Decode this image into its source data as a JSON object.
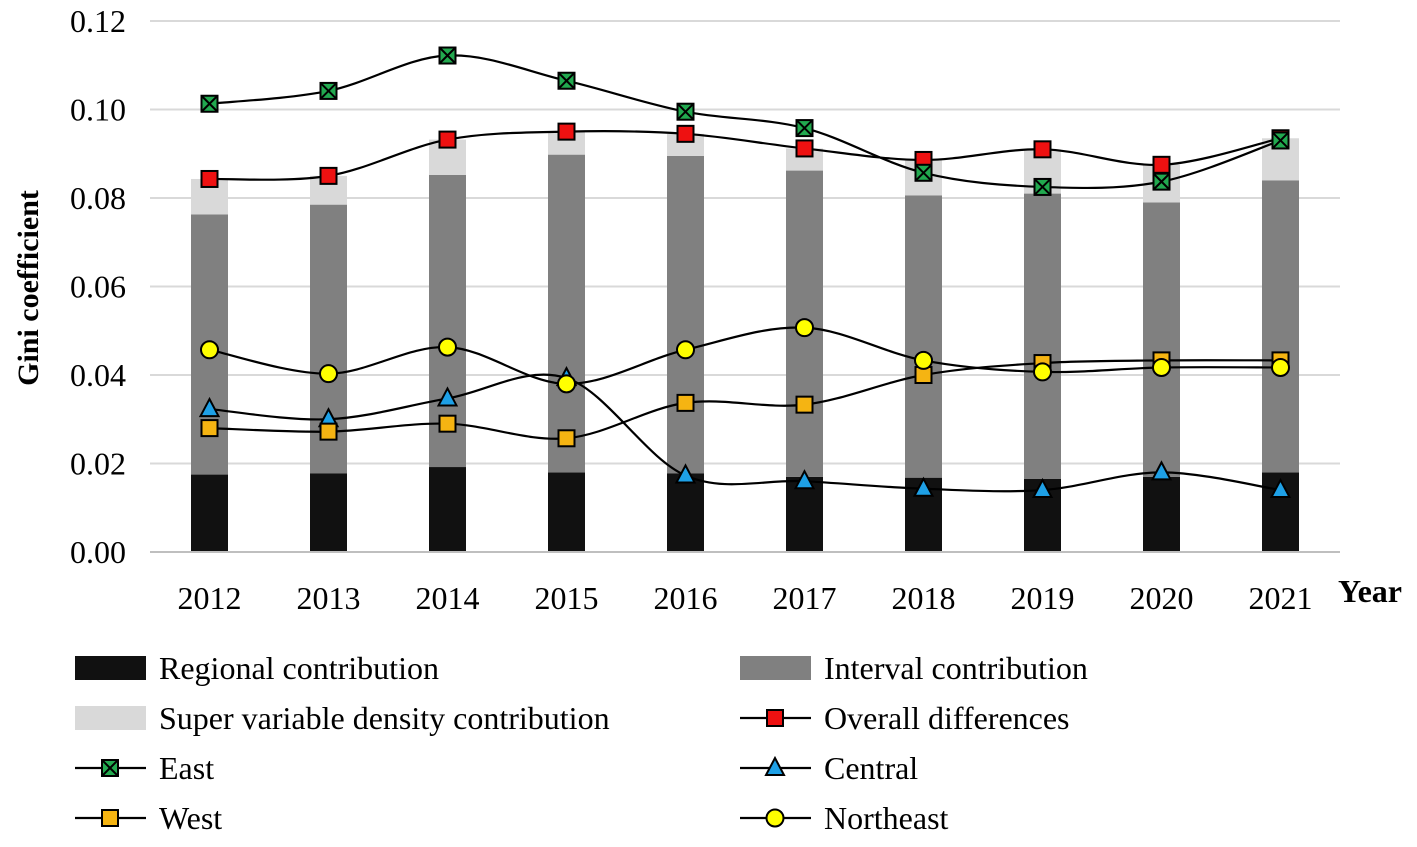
{
  "chart_data": {
    "type": "bar",
    "title": "",
    "xlabel": "Year",
    "ylabel": "Gini coefficient",
    "ylim": [
      0,
      0.12
    ],
    "yticks": [
      "0.00",
      "0.02",
      "0.04",
      "0.06",
      "0.08",
      "0.10",
      "0.12"
    ],
    "grid": true,
    "legend_position": "bottom",
    "categories": [
      "2012",
      "2013",
      "2014",
      "2015",
      "2016",
      "2017",
      "2018",
      "2019",
      "2020",
      "2021"
    ],
    "stacked_bars": [
      {
        "name": "Regional contribution",
        "color": "#111111",
        "values": [
          0.0175,
          0.0178,
          0.0192,
          0.018,
          0.0178,
          0.017,
          0.0168,
          0.0165,
          0.017,
          0.018
        ]
      },
      {
        "name": "Interval contribution",
        "color": "#808080",
        "values": [
          0.0588,
          0.0607,
          0.066,
          0.0718,
          0.0717,
          0.0692,
          0.0638,
          0.0645,
          0.062,
          0.066
        ]
      },
      {
        "name": "Super variable density contribution",
        "color": "#d9d9d9",
        "values": [
          0.008,
          0.0065,
          0.008,
          0.0052,
          0.005,
          0.005,
          0.008,
          0.01,
          0.0085,
          0.0095
        ]
      }
    ],
    "line_series": [
      {
        "name": "Overall differences",
        "marker": "square",
        "color": "#ee1111",
        "values": [
          0.0843,
          0.085,
          0.0932,
          0.095,
          0.0945,
          0.0912,
          0.0886,
          0.091,
          0.0875,
          0.0935
        ]
      },
      {
        "name": "East",
        "marker": "x-square",
        "color": "#22a94f",
        "values": [
          0.1013,
          0.1042,
          0.1122,
          0.1065,
          0.0995,
          0.0958,
          0.0857,
          0.0825,
          0.0837,
          0.093
        ]
      },
      {
        "name": "Central",
        "marker": "triangle",
        "color": "#1ea0e6",
        "values": [
          0.0323,
          0.03,
          0.0347,
          0.0393,
          0.0173,
          0.016,
          0.0143,
          0.014,
          0.018,
          0.014
        ]
      },
      {
        "name": "West",
        "marker": "square",
        "color": "#f5b412",
        "values": [
          0.028,
          0.0272,
          0.029,
          0.0257,
          0.0337,
          0.0333,
          0.04,
          0.0427,
          0.0433,
          0.0433
        ]
      },
      {
        "name": "Northeast",
        "marker": "circle",
        "color": "#ffff00",
        "values": [
          0.0457,
          0.0403,
          0.0463,
          0.038,
          0.0457,
          0.0507,
          0.0433,
          0.0407,
          0.0417,
          0.0417
        ]
      }
    ],
    "legend": [
      {
        "label": "Regional contribution",
        "kind": "bar",
        "color": "#111111"
      },
      {
        "label": "Interval contribution",
        "kind": "bar",
        "color": "#808080"
      },
      {
        "label": "Super variable density contribution",
        "kind": "bar",
        "color": "#d9d9d9"
      },
      {
        "label": "Overall differences",
        "kind": "line",
        "marker": "square",
        "color": "#ee1111"
      },
      {
        "label": "East",
        "kind": "line",
        "marker": "x-square",
        "color": "#22a94f"
      },
      {
        "label": "Central",
        "kind": "line",
        "marker": "triangle",
        "color": "#1ea0e6"
      },
      {
        "label": "West",
        "kind": "line",
        "marker": "square",
        "color": "#f5b412"
      },
      {
        "label": "Northeast",
        "kind": "line",
        "marker": "circle",
        "color": "#ffff00"
      }
    ]
  }
}
